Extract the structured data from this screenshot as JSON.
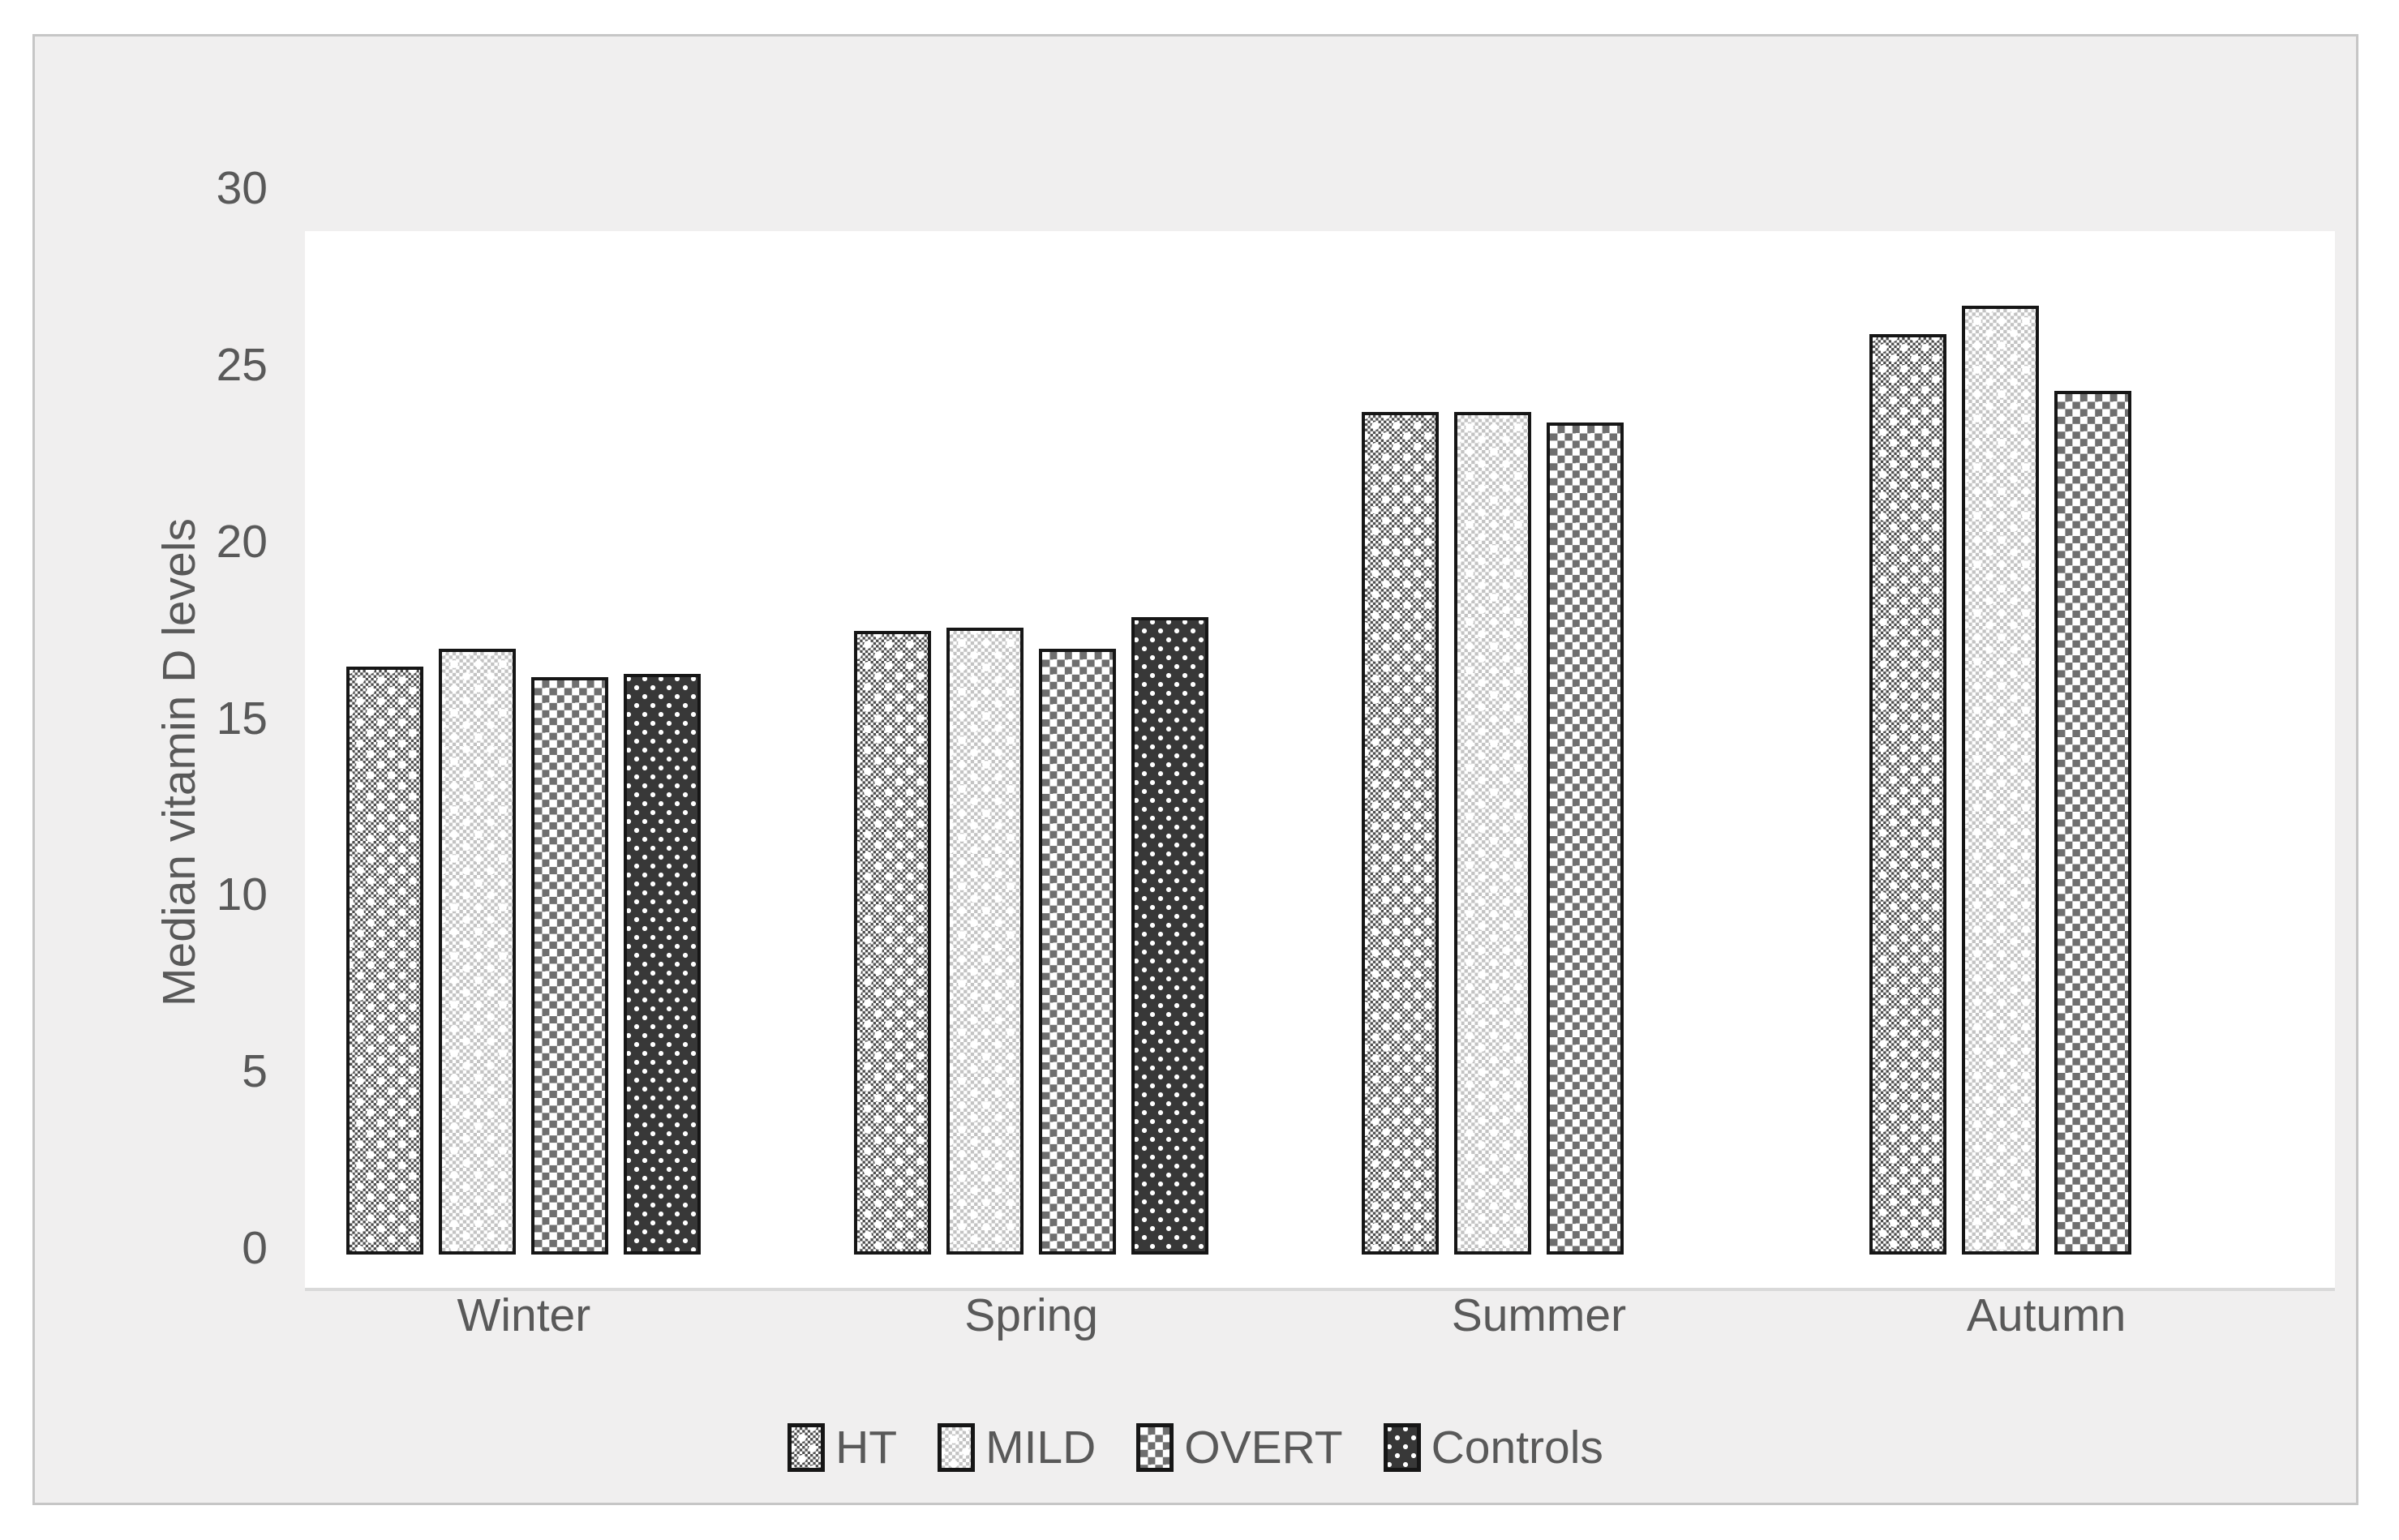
{
  "chart": {
    "ylabel": "Median vitamin D levels",
    "y_ticks": [
      0,
      5,
      10,
      15,
      20,
      25,
      30
    ],
    "text_color": "#595959",
    "axis_line_color": "#d9d9d9"
  },
  "chart_data": {
    "type": "bar",
    "title": "",
    "categories": [
      "Winter",
      "Spring",
      "Summer",
      "Autumn"
    ],
    "series": [
      {
        "name": "HT",
        "pattern": "dark-small-checker-plus",
        "color": "#4d4d4d",
        "values": [
          16.6,
          17.6,
          23.8,
          26.0
        ]
      },
      {
        "name": "MILD",
        "pattern": "light-small-checker-plus",
        "color": "#c3c3c3",
        "values": [
          17.1,
          17.7,
          23.8,
          26.8
        ]
      },
      {
        "name": "OVERT",
        "pattern": "medium-large-checker",
        "color": "#6f6f6f",
        "values": [
          16.3,
          17.1,
          23.5,
          24.4
        ]
      },
      {
        "name": "Controls",
        "pattern": "dark-white-dots",
        "color": "#383838",
        "values": [
          16.4,
          18.0,
          null,
          null
        ]
      }
    ],
    "xlabel": "",
    "ylabel": "Median vitamin D levels",
    "ylim": [
      0,
      30
    ],
    "grid": false,
    "legend_position": "bottom-center",
    "plot_background": "#ffffff",
    "panel_background": "#f0efef"
  }
}
